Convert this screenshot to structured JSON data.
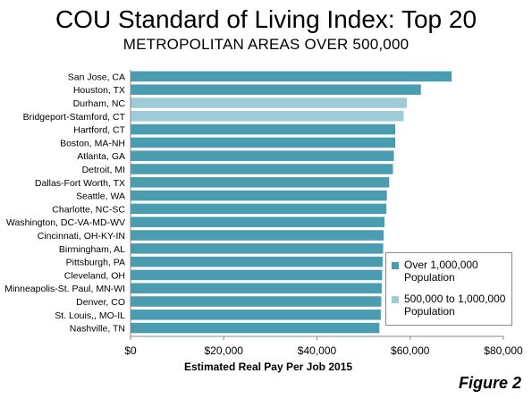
{
  "title": "COU Standard of Living Index: Top 20",
  "subtitle": "METROPOLITAN AREAS OVER 500,000",
  "figure_label": "Figure 2",
  "colors": {
    "large": "#4a9db0",
    "medium": "#9ecbd8"
  },
  "chart_data": {
    "type": "bar",
    "orientation": "horizontal",
    "xlabel": "Estimated Real Pay Per Job 2015",
    "xlim": [
      0,
      80000
    ],
    "xticks": [
      0,
      20000,
      40000,
      60000,
      80000
    ],
    "xtick_labels": [
      "$0",
      "$20,000",
      "$40,000",
      "$60,000",
      "$80,000"
    ],
    "grid": false,
    "legend_position": "lower-right",
    "legend": [
      {
        "group": "large",
        "label": "Over 1,000,000 Population"
      },
      {
        "group": "medium",
        "label": "500,000 to 1,000,000 Population"
      }
    ],
    "categories": [
      "San Jose, CA",
      "Houston, TX",
      "Durham, NC",
      "Bridgeport-Stamford, CT",
      "Hartford, CT",
      "Boston, MA-NH",
      "Atlanta, GA",
      "Detroit,  MI",
      "Dallas-Fort Worth, TX",
      "Seattle, WA",
      "Charlotte, NC-SC",
      "Washington, DC-VA-MD-WV",
      "Cincinnati, OH-KY-IN",
      "Birmingham, AL",
      "Pittsburgh, PA",
      "Cleveland, OH",
      "Minneapolis-St. Paul, MN-WI",
      "Denver, CO",
      "St. Louis,, MO-IL",
      "Nashville, TN"
    ],
    "values": [
      68900,
      62300,
      59300,
      58600,
      56800,
      56800,
      56500,
      56300,
      55500,
      55000,
      54900,
      54500,
      54300,
      54200,
      54100,
      54000,
      53900,
      53800,
      53700,
      53400
    ],
    "groups": [
      "large",
      "large",
      "medium",
      "medium",
      "large",
      "large",
      "large",
      "large",
      "large",
      "large",
      "large",
      "large",
      "large",
      "large",
      "large",
      "large",
      "large",
      "large",
      "large",
      "large"
    ]
  }
}
